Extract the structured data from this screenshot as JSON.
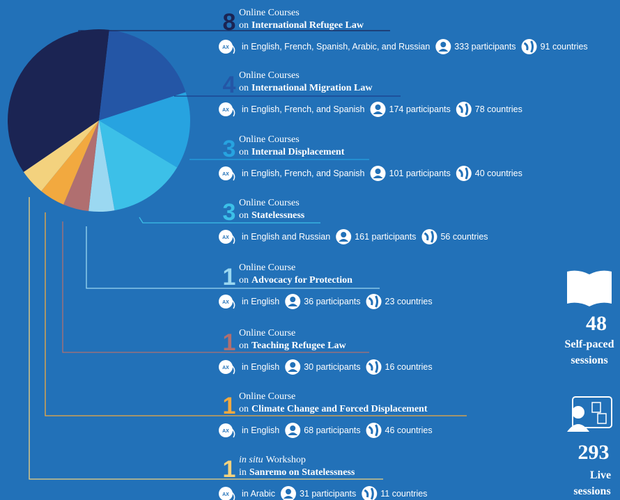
{
  "chart_data": {
    "type": "pie",
    "categories": [
      "International Refugee Law",
      "International Migration Law",
      "Internal Displacement",
      "Statelessness",
      "Advocacy for Protection",
      "Teaching Refugee Law",
      "Climate Change and Forced Displacement",
      "Sanremo on Statelessness"
    ],
    "values": [
      8,
      4,
      3,
      3,
      1,
      1,
      1,
      1
    ],
    "colors": [
      "#1b2453",
      "#2456a6",
      "#27a3e0",
      "#3cc0e8",
      "#9bd8f1",
      "#b06f70",
      "#f2a93f",
      "#f3d27e"
    ]
  },
  "courses": [
    {
      "unit": "Online Courses",
      "prefix": "on",
      "languages": "in English, French, Spanish, Arabic, and Russian",
      "participants": "333 participants",
      "countries": "91 countries"
    },
    {
      "unit": "Online Courses",
      "prefix": "on",
      "languages": "in English, French, and Spanish",
      "participants": "174 participants",
      "countries": "78 countries"
    },
    {
      "unit": "Online Courses",
      "prefix": "on",
      "languages": "in English, French, and Spanish",
      "participants": "101 participants",
      "countries": "40 countries"
    },
    {
      "unit": "Online Courses",
      "prefix": "on",
      "languages": "in English and Russian",
      "participants": "161 participants",
      "countries": "56 countries"
    },
    {
      "unit": "Online Course",
      "prefix": "on",
      "languages": "in English",
      "participants": "36 participants",
      "countries": "23 countries"
    },
    {
      "unit": "Online Course",
      "prefix": "on",
      "languages": "in English",
      "participants": "30 participants",
      "countries": "16 countries"
    },
    {
      "unit": "Online Course",
      "prefix": "on",
      "languages": "in English",
      "participants": "68 participants",
      "countries": "46 countries"
    },
    {
      "unit_italic": "in situ",
      "unit": "Workshop",
      "prefix": "in",
      "languages": "in Arabic",
      "participants": "31 participants",
      "countries": "11 countries"
    }
  ],
  "icon_label": "AX",
  "stats": [
    {
      "number": "48",
      "label_1": "Self-paced",
      "label_2": "sessions"
    },
    {
      "number": "293",
      "label_1": "Live",
      "label_2": "sessions"
    }
  ]
}
